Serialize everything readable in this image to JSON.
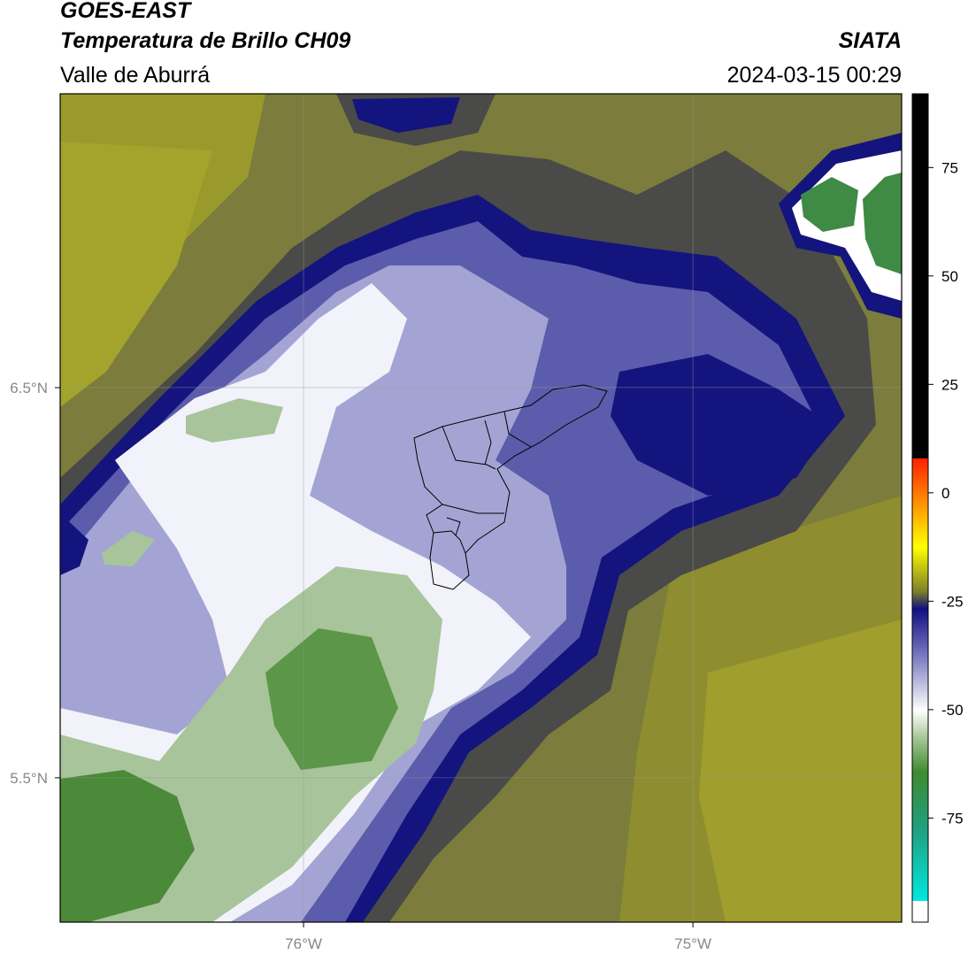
{
  "header": {
    "title": "GOES-EAST",
    "subtitle": "Temperatura de Brillo CH09",
    "source": "SIATA",
    "region": "Valle de Aburrá",
    "timestamp": "2024-03-15 00:29"
  },
  "map": {
    "xlim": [
      -76.625,
      -74.464
    ],
    "ylim": [
      5.13,
      7.253
    ],
    "xticks": [
      {
        "value": -76,
        "label": "76°W"
      },
      {
        "value": -75,
        "label": "75°W"
      }
    ],
    "yticks": [
      {
        "value": 6.5,
        "label": "6.5°N"
      },
      {
        "value": 5.5,
        "label": "5.5°N"
      }
    ],
    "grid": true
  },
  "colorbar": {
    "lim": [
      -99,
      92
    ],
    "ticks": [
      75,
      50,
      25,
      0,
      -25,
      -50,
      -75
    ]
  }
}
